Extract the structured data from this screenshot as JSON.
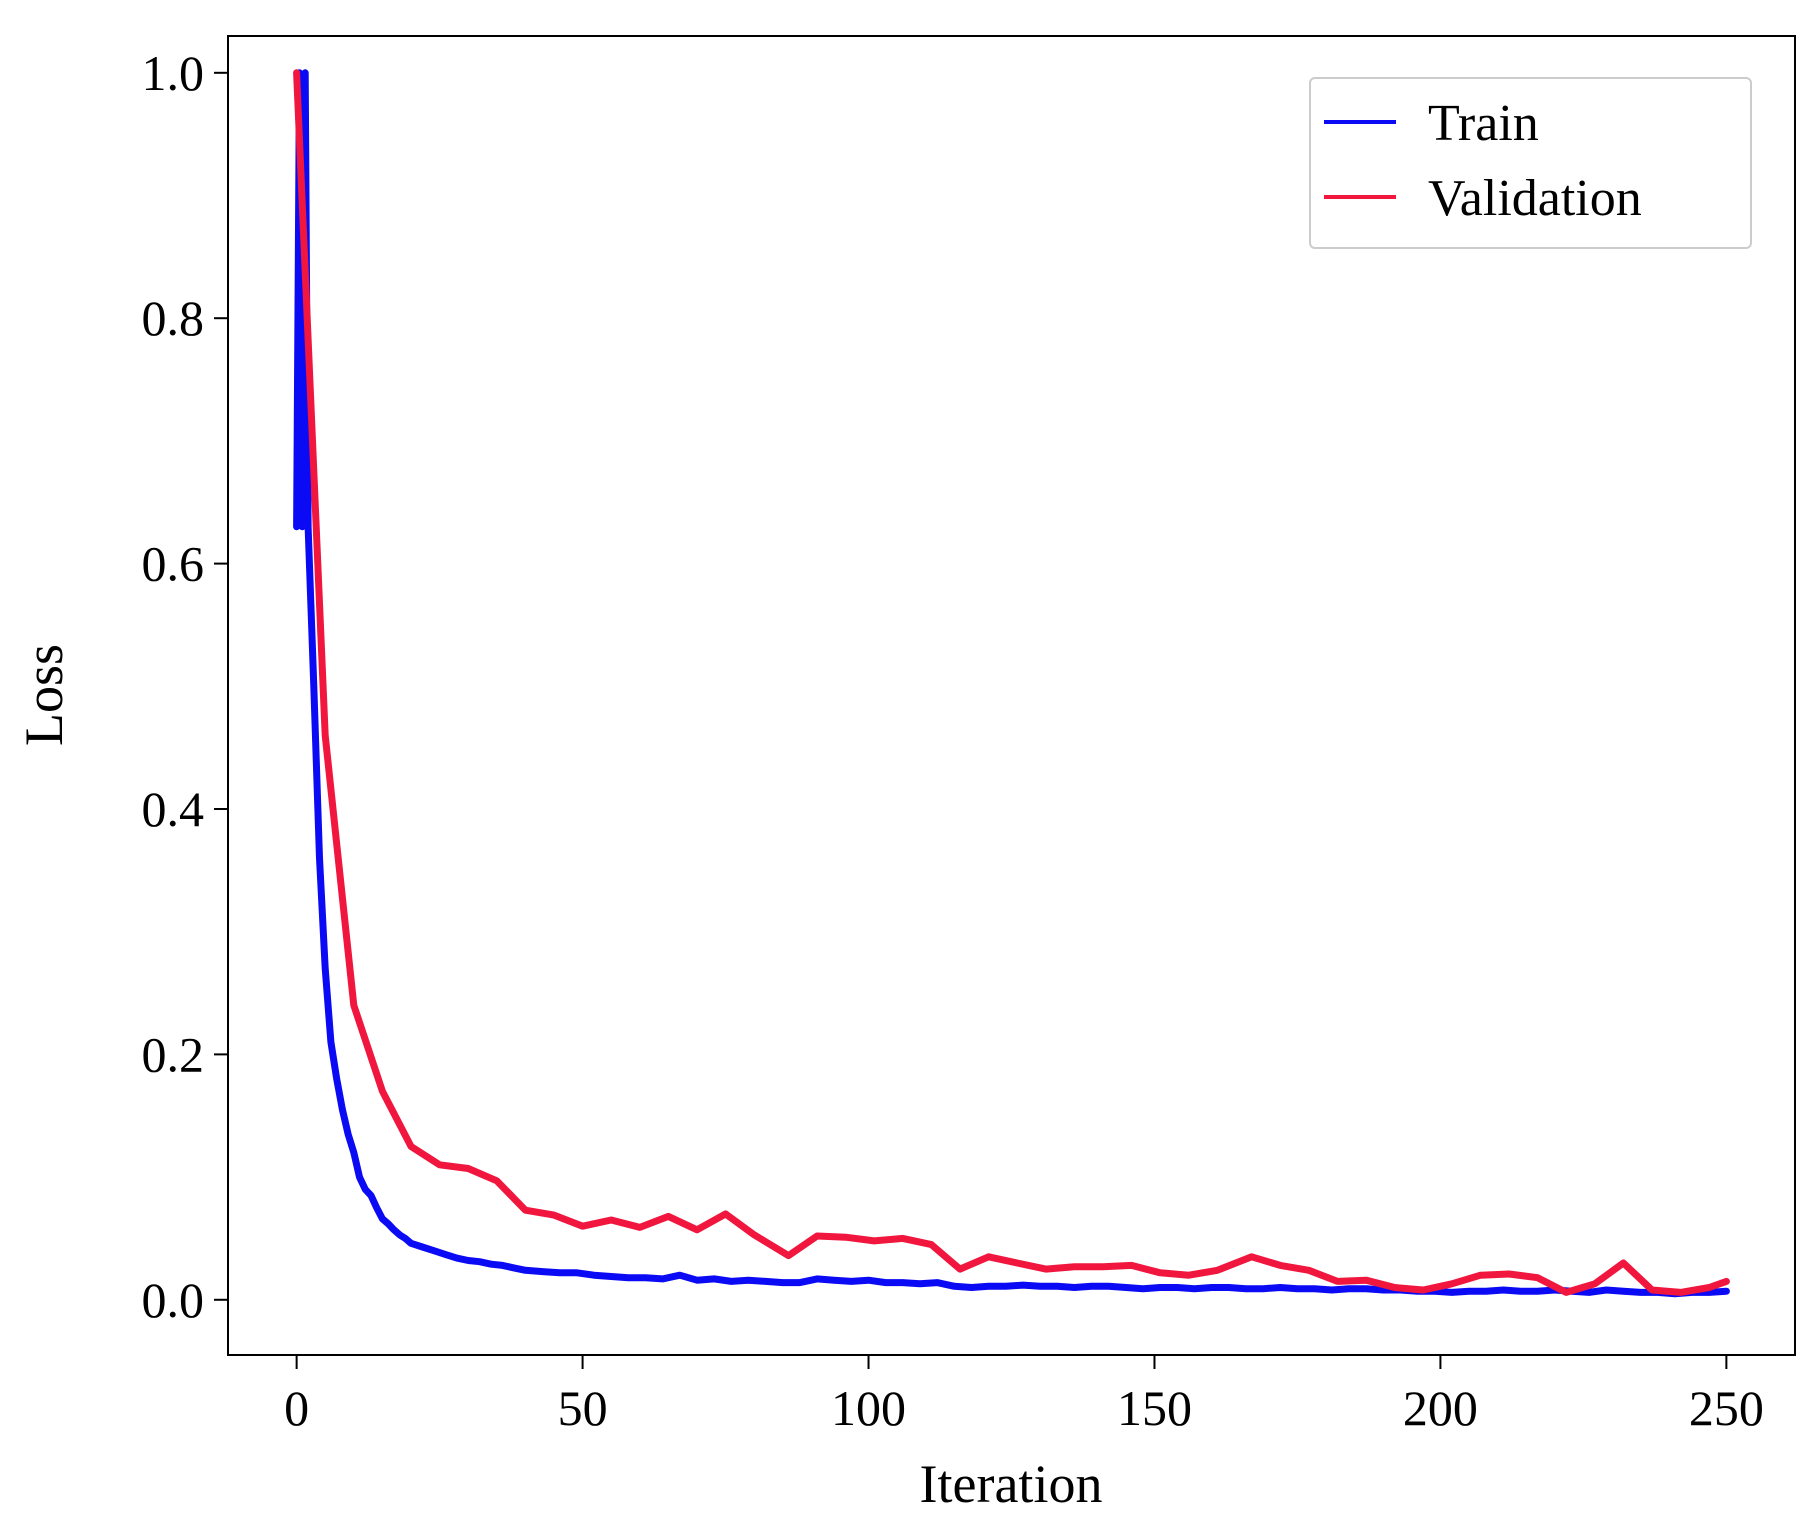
{
  "chart_data": {
    "type": "line",
    "title": "",
    "xlabel": "Iteration",
    "ylabel": "Loss",
    "xlim": [
      -12,
      262
    ],
    "ylim": [
      -0.045,
      1.03
    ],
    "xticks": [
      0,
      50,
      100,
      150,
      200,
      250
    ],
    "xtick_labels": [
      "0",
      "50",
      "100",
      "150",
      "200",
      "250"
    ],
    "yticks": [
      0.0,
      0.2,
      0.4,
      0.6,
      0.8,
      1.0
    ],
    "ytick_labels": [
      "0.0",
      "0.2",
      "0.4",
      "0.6",
      "0.8",
      "1.0"
    ],
    "grid": false,
    "legend_position": "top-right",
    "series": [
      {
        "name": "Train",
        "color": "#0a0af5",
        "x": [
          0,
          0.5,
          1,
          1.5,
          2,
          3,
          4,
          5,
          6,
          7,
          8,
          9,
          10,
          11,
          12,
          13,
          14,
          15,
          16,
          17,
          18,
          19,
          20,
          22,
          24,
          26,
          28,
          30,
          32,
          34,
          36,
          38,
          40,
          43,
          46,
          49,
          52,
          55,
          58,
          61,
          64,
          67,
          70,
          73,
          76,
          79,
          82,
          85,
          88,
          91,
          94,
          97,
          100,
          103,
          106,
          109,
          112,
          115,
          118,
          121,
          124,
          127,
          130,
          133,
          136,
          139,
          142,
          145,
          148,
          151,
          154,
          157,
          160,
          163,
          166,
          169,
          172,
          175,
          178,
          181,
          184,
          187,
          190,
          193,
          196,
          199,
          202,
          205,
          208,
          211,
          214,
          217,
          220,
          223,
          226,
          229,
          232,
          235,
          238,
          241,
          244,
          247,
          250
        ],
        "values": [
          0.63,
          1.0,
          0.63,
          1.0,
          0.63,
          0.5,
          0.36,
          0.27,
          0.21,
          0.18,
          0.155,
          0.135,
          0.12,
          0.1,
          0.09,
          0.085,
          0.075,
          0.066,
          0.062,
          0.057,
          0.053,
          0.05,
          0.046,
          0.043,
          0.04,
          0.037,
          0.034,
          0.032,
          0.031,
          0.029,
          0.028,
          0.026,
          0.024,
          0.023,
          0.022,
          0.022,
          0.02,
          0.019,
          0.018,
          0.018,
          0.017,
          0.02,
          0.016,
          0.017,
          0.015,
          0.016,
          0.015,
          0.014,
          0.014,
          0.017,
          0.016,
          0.015,
          0.016,
          0.014,
          0.014,
          0.013,
          0.014,
          0.011,
          0.01,
          0.011,
          0.011,
          0.012,
          0.011,
          0.011,
          0.01,
          0.011,
          0.011,
          0.01,
          0.009,
          0.01,
          0.01,
          0.009,
          0.01,
          0.01,
          0.009,
          0.009,
          0.01,
          0.009,
          0.009,
          0.008,
          0.009,
          0.009,
          0.008,
          0.008,
          0.007,
          0.007,
          0.006,
          0.007,
          0.007,
          0.008,
          0.007,
          0.007,
          0.008,
          0.007,
          0.006,
          0.008,
          0.007,
          0.006,
          0.006,
          0.005,
          0.006,
          0.006,
          0.007
        ]
      },
      {
        "name": "Validation",
        "color": "#f0163e",
        "x": [
          0,
          5,
          10,
          15,
          20,
          25,
          30,
          35,
          40,
          45,
          50,
          55,
          60,
          65,
          70,
          75,
          80,
          86,
          91,
          96,
          101,
          106,
          111,
          116,
          121,
          126,
          131,
          136,
          141,
          146,
          151,
          156,
          161,
          167,
          172,
          177,
          182,
          187,
          192,
          197,
          202,
          207,
          212,
          217,
          222,
          227,
          232,
          237,
          242,
          247,
          250
        ],
        "values": [
          1.0,
          0.46,
          0.24,
          0.17,
          0.125,
          0.11,
          0.107,
          0.097,
          0.073,
          0.069,
          0.06,
          0.065,
          0.059,
          0.068,
          0.057,
          0.07,
          0.053,
          0.036,
          0.052,
          0.051,
          0.048,
          0.05,
          0.045,
          0.025,
          0.035,
          0.03,
          0.025,
          0.027,
          0.027,
          0.028,
          0.022,
          0.02,
          0.024,
          0.035,
          0.028,
          0.024,
          0.015,
          0.016,
          0.01,
          0.008,
          0.013,
          0.02,
          0.021,
          0.018,
          0.006,
          0.013,
          0.03,
          0.008,
          0.006,
          0.01,
          0.015
        ]
      }
    ]
  }
}
